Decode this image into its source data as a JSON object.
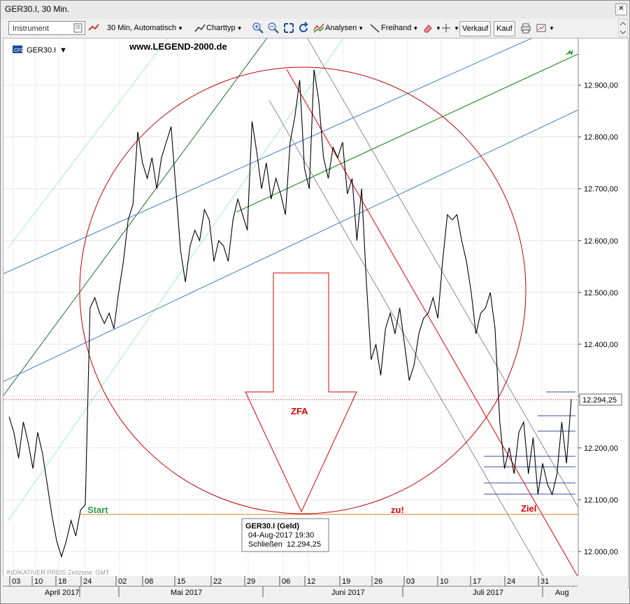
{
  "window": {
    "title": "GER30.I, 30 Min."
  },
  "toolbar": {
    "instrument_placeholder": "Instrument",
    "interval": "30 Min,",
    "scale": "Automatisch",
    "charttype": "Charttyp",
    "analysen": "Analysen",
    "freihand": "Freihand",
    "verkauf": "Verkauf",
    "kauf": "Kauf"
  },
  "chart": {
    "symbol_label": "GER30.I",
    "watermark": "www.LEGEND-2000.de",
    "footer_note": "INDIKATIVER PREIS   Zeitzone: GMT",
    "current_price": "12.294,25",
    "annotations": {
      "start": "Start",
      "zfa": "ZFA",
      "zu": "zu!",
      "ziel": "Ziel"
    },
    "tooltip": {
      "title": "GER30.I (Geld)",
      "datetime": "04-Aug-2017 19:30",
      "close_label": "Schließen",
      "close_value": "12.294,25"
    },
    "colors": {
      "price": "#000000",
      "channel_blue": "#3b7dc4",
      "channel_green": "#2a8f2a",
      "red_line": "#e00000",
      "circle": "#c00000",
      "grey": "#8c8c8c",
      "start_line": "#d08020",
      "light_green": "#8fe0a8"
    }
  },
  "chart_data": {
    "type": "line",
    "title": "GER30.I, 30 Min.",
    "ylim": [
      11950,
      12990
    ],
    "y_ticks": [
      "12.900,00",
      "12.800,00",
      "12.700,00",
      "12.600,00",
      "12.500,00",
      "12.400,00",
      "12.300,00",
      "12.200,00",
      "12.100,00",
      "12.000,00"
    ],
    "x_day_ticks": [
      "03",
      "10",
      "18",
      "24",
      "02",
      "08",
      "15",
      "22",
      "29",
      "06",
      "12",
      "19",
      "26",
      "03",
      "10",
      "17",
      "24",
      "31"
    ],
    "x_month_ticks": [
      "April 2017",
      "Mai 2017",
      "Juni 2017",
      "Juli 2017",
      "Aug"
    ],
    "series": [
      {
        "x": [
          0,
          3,
          6,
          9,
          12,
          15,
          18,
          21,
          24,
          27,
          30,
          33,
          36,
          39,
          42,
          45,
          48,
          51,
          54,
          57,
          60,
          63,
          66,
          69,
          72,
          75,
          78,
          81,
          84,
          87,
          90,
          93,
          96,
          99,
          102,
          105,
          108,
          111,
          114,
          117,
          120,
          123,
          126,
          129,
          132,
          135,
          138,
          141,
          144,
          147,
          150,
          153,
          156,
          159,
          162,
          165,
          168,
          171,
          174,
          177,
          180,
          183,
          186,
          189,
          192,
          195,
          198,
          201,
          204
        ],
        "values": [
          12260,
          12230,
          12180,
          12250,
          12210,
          12160,
          12230,
          12190,
          12130,
          12070,
          12020,
          11990,
          12020,
          12060,
          12030,
          12080,
          12090,
          12470,
          12490,
          12460,
          12440,
          12460,
          12430,
          12500,
          12560,
          12640,
          12670,
          12810,
          12750,
          12720,
          12760,
          12700,
          12760,
          12790,
          12820,
          12700,
          12580,
          12520,
          12590,
          12620,
          12600,
          12660,
          12640,
          12560,
          12600,
          12590,
          12560,
          12640,
          12680,
          12650,
          12620,
          12830,
          12770,
          12700,
          12750,
          12680,
          12720,
          12690,
          12650,
          12790,
          12840,
          12910,
          12740,
          12700,
          12930,
          12870,
          12760,
          12720,
          12780
        ]
      },
      {
        "x": [
          207,
          210,
          213,
          216,
          219,
          222,
          225,
          228,
          231,
          234,
          237,
          240,
          243,
          246,
          249,
          252,
          255,
          258,
          261,
          264,
          267,
          270,
          273,
          276,
          279,
          282,
          285,
          288,
          291,
          294,
          297,
          300,
          303,
          306,
          309,
          312,
          315,
          318,
          321,
          324,
          327,
          330,
          333,
          336,
          339,
          342,
          345,
          348,
          351,
          354
        ],
        "values": [
          12760,
          12790,
          12690,
          12720,
          12600,
          12700,
          12520,
          12370,
          12400,
          12340,
          12430,
          12460,
          12420,
          12470,
          12400,
          12330,
          12360,
          12420,
          12450,
          12460,
          12490,
          12450,
          12560,
          12650,
          12640,
          12650,
          12600,
          12560,
          12500,
          12420,
          12460,
          12470,
          12500,
          12430,
          12250,
          12160,
          12200,
          12150,
          12230,
          12250,
          12150,
          12220,
          12110,
          12170,
          12130,
          12110,
          12150,
          12250,
          12170,
          12294
        ]
      }
    ]
  }
}
